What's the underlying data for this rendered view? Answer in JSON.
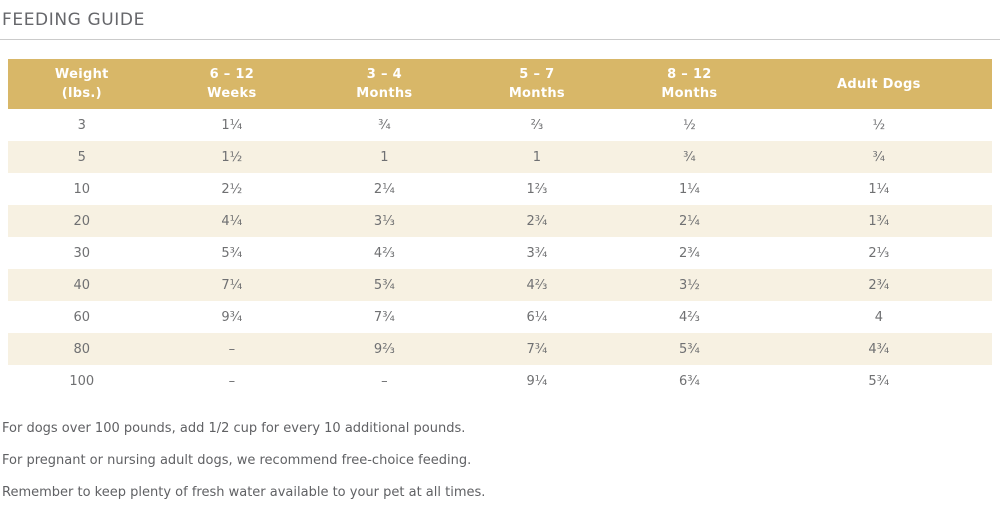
{
  "page": {
    "title": "FEEDING GUIDE"
  },
  "colors": {
    "header_bg": "#d8b768",
    "row_alt_bg": "#f7f1e2",
    "header_text": "#ffffff",
    "body_text": "#6f7072",
    "title_text": "#66676b",
    "divider": "#cbcbcb"
  },
  "table": {
    "headers": [
      {
        "line1": "Weight",
        "line2": "(lbs.)"
      },
      {
        "line1": "6 – 12",
        "line2": "Weeks"
      },
      {
        "line1": "3 – 4",
        "line2": "Months"
      },
      {
        "line1": "5 – 7",
        "line2": "Months"
      },
      {
        "line1": "8 – 12",
        "line2": "Months"
      },
      {
        "line1": "Adult Dogs",
        "line2": ""
      }
    ],
    "rows": [
      [
        "3",
        "1¼",
        "¾",
        "⅔",
        "½",
        "½"
      ],
      [
        "5",
        "1½",
        "1",
        "1",
        "¾",
        "¾"
      ],
      [
        "10",
        "2½",
        "2¼",
        "1⅔",
        "1¼",
        "1¼"
      ],
      [
        "20",
        "4¼",
        "3⅓",
        "2¾",
        "2¼",
        "1¾"
      ],
      [
        "30",
        "5¾",
        "4⅔",
        "3¾",
        "2¾",
        "2⅓"
      ],
      [
        "40",
        "7¼",
        "5¾",
        "4⅔",
        "3½",
        "2¾"
      ],
      [
        "60",
        "9¾",
        "7¾",
        "6¼",
        "4⅔",
        "4"
      ],
      [
        "80",
        "–",
        "9⅔",
        "7¾",
        "5¾",
        "4¾"
      ],
      [
        "100",
        "–",
        "–",
        "9¼",
        "6¾",
        "5¾"
      ]
    ]
  },
  "notes": [
    "For dogs over 100 pounds, add 1/2 cup for every 10 additional pounds.",
    "For pregnant or nursing adult dogs, we recommend free-choice feeding.",
    "Remember to keep plenty of fresh water available to your pet at all times."
  ]
}
